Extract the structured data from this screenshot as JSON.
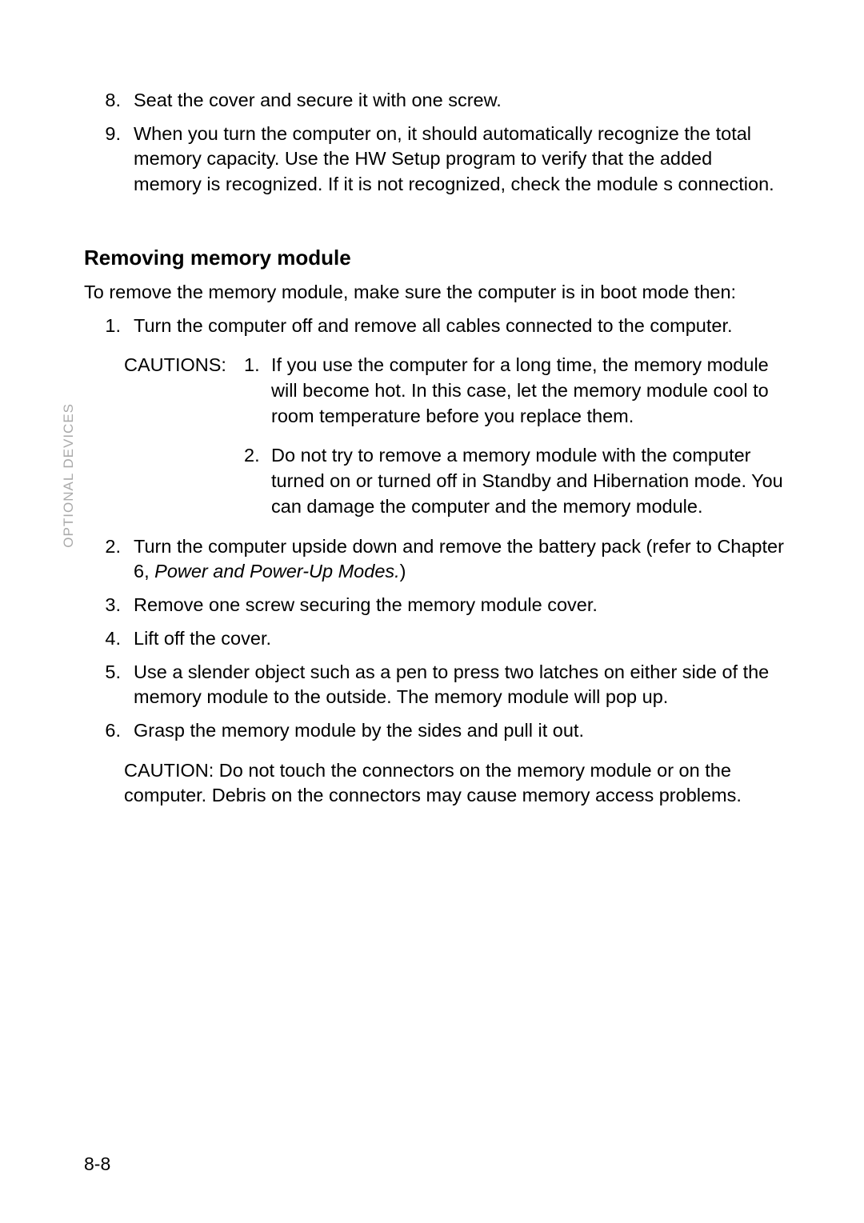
{
  "top_list": [
    {
      "n": "8.",
      "text": "Seat the cover and secure it with one screw."
    },
    {
      "n": "9.",
      "text": "When you turn the computer on, it should automatically recognize the total memory capacity. Use the HW Setup program to verify that the added memory is recognized. If it is not recognized, check the module s connection."
    }
  ],
  "section_title": "Removing memory module",
  "intro": "To remove the memory module, make sure the computer is in boot mode then:",
  "step1": {
    "n": "1.",
    "text": "Turn the computer off and remove all cables connected to the computer."
  },
  "cautions_label": "CAUTIONS:",
  "cautions": [
    {
      "n": "1.",
      "text": "If you use the computer for a long time, the memory module will become hot. In this case, let the memory module cool to room temperature before you replace them."
    },
    {
      "n": "2.",
      "text": "Do not try to remove a memory module with the computer turned on or turned off in Standby and Hibernation mode. You can damage the computer and the memory module."
    }
  ],
  "step2": {
    "n": "2.",
    "pre": "Turn the computer upside down and remove the battery pack (refer to Chapter 6, ",
    "link": "Power and Power-Up Modes.",
    "post": ")"
  },
  "step3": {
    "n": "3.",
    "text": "Remove one screw securing the memory module cover."
  },
  "step4": {
    "n": "4.",
    "text": "Lift off the cover."
  },
  "step5": {
    "n": "5.",
    "text": "Use a slender object such as a pen to press two latches on either side of the memory module to the outside. The memory module will pop up."
  },
  "step6": {
    "n": "6.",
    "text": "Grasp the memory module by the sides and pull it out."
  },
  "single_caution": "CAUTION: Do not touch the connectors on the memory module or on the computer. Debris on the connectors may cause memory access problems.",
  "sidebar": "OPTIONAL DEVICES",
  "pagenum": "8-8",
  "colors": {
    "text": "#000000",
    "bg": "#ffffff",
    "side": "#a9a9a9"
  },
  "fontsizes": {
    "body": 23.5,
    "title": 26,
    "side": 17,
    "pagenum": 23
  }
}
